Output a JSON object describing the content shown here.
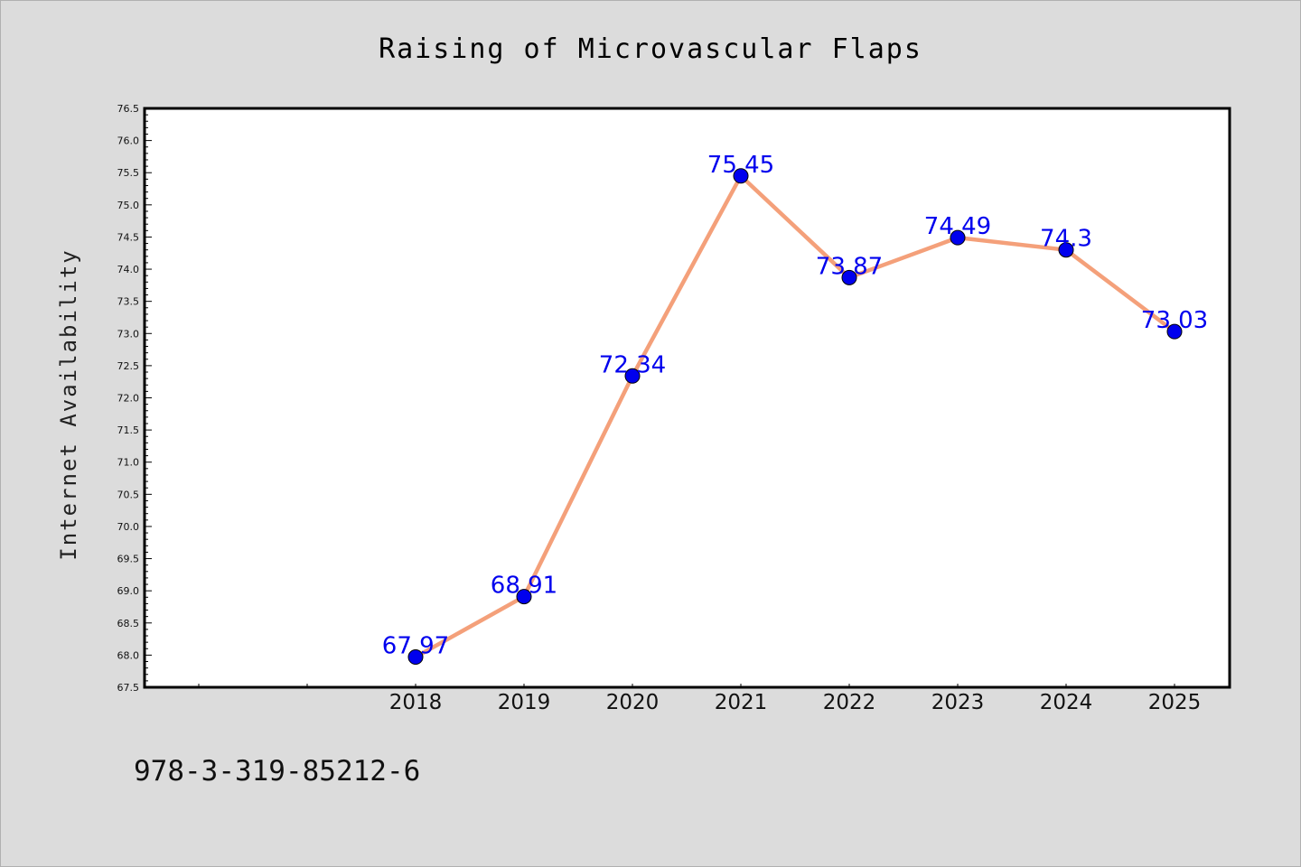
{
  "chart_data": {
    "type": "line",
    "title": "Raising of Microvascular Flaps",
    "xlabel": "",
    "ylabel": "Internet Availability",
    "categories": [
      "2018",
      "2019",
      "2020",
      "2021",
      "2022",
      "2023",
      "2024",
      "2025"
    ],
    "values": [
      67.97,
      68.91,
      72.34,
      75.45,
      73.87,
      74.49,
      74.3,
      73.03
    ],
    "data_labels": [
      "67.97",
      "68.91",
      "72.34",
      "75.45",
      "73.87",
      "74.49",
      "74.3",
      "73.03"
    ],
    "ylim": [
      67.5,
      76.5
    ],
    "yticks": [
      "67.5",
      "68.0",
      "68.5",
      "69.0",
      "69.5",
      "70.0",
      "70.5",
      "71.0",
      "71.5",
      "72.0",
      "72.5",
      "73.0",
      "73.5",
      "74.0",
      "74.5",
      "75.0",
      "75.5",
      "76.0",
      "76.5"
    ],
    "grid": false,
    "legend": "none",
    "line_color": "#f4a07a",
    "marker_color": "#0000ee",
    "label_color": "#0000ee",
    "background_color": "#dcdcdc",
    "plot_background": "#ffffff"
  },
  "footer": {
    "text": "978-3-319-85212-6"
  }
}
